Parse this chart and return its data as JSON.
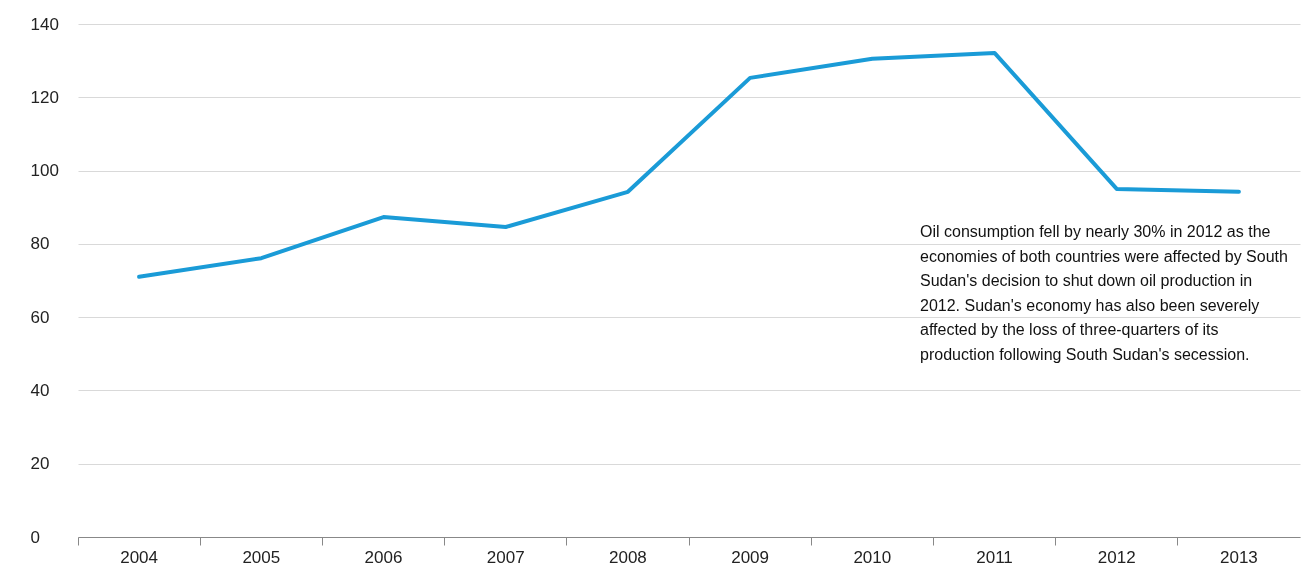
{
  "chart_data": {
    "type": "line",
    "categories": [
      "2004",
      "2005",
      "2006",
      "2007",
      "2008",
      "2009",
      "2010",
      "2011",
      "2012",
      "2013"
    ],
    "series": [
      {
        "color": "#1a9bd7",
        "values": [
          71.0,
          76.1,
          87.3,
          84.6,
          94.2,
          125.3,
          130.5,
          132.1,
          95.0,
          94.2
        ]
      }
    ],
    "ylim": [
      0,
      140
    ],
    "yticks": [
      0,
      20,
      40,
      60,
      80,
      100,
      120,
      140
    ],
    "grid": "y",
    "marker": "none",
    "line_style": "solid",
    "annotations": [
      "Oil consumption fell by nearly 30% in 2012 as the economies of both countries were affected by South Sudan's decision to shut down oil production in 2012. Sudan's economy has also been severely affected by the loss of three-quarters of its production following South Sudan's secession."
    ]
  }
}
